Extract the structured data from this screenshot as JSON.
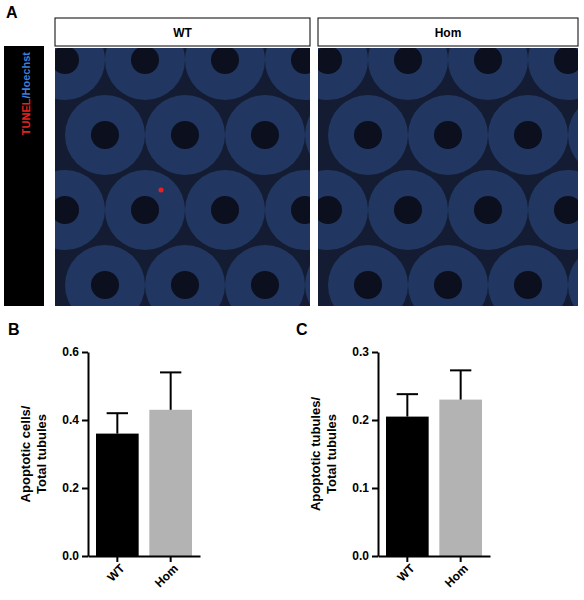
{
  "figure": {
    "panel_labels": [
      "A",
      "B",
      "C"
    ],
    "image_panel": {
      "stain_labels": [
        "TUNEL",
        "/Hoechst"
      ],
      "stain_colors": [
        "#e8231f",
        "#3d7fd6"
      ],
      "columns": [
        "WT",
        "Hom"
      ]
    }
  },
  "chart_data": [
    {
      "type": "bar",
      "categories": [
        "WT",
        "Hom"
      ],
      "values": [
        0.36,
        0.43
      ],
      "errors": [
        0.06,
        0.11
      ],
      "colors": [
        "#000000",
        "#b3b3b3"
      ],
      "y_label": [
        "Apoptotic cells/",
        "Total tubules"
      ],
      "ylim": [
        0,
        0.6
      ],
      "yticks": [
        {
          "value": 0,
          "label": "0.0"
        },
        0.2,
        0.4,
        0.6
      ]
    },
    {
      "type": "bar",
      "categories": [
        "WT",
        "Hom"
      ],
      "values": [
        0.205,
        0.23
      ],
      "errors": [
        0.033,
        0.043
      ],
      "colors": [
        "#000000",
        "#b3b3b3"
      ],
      "y_label": [
        "Apoptotic tubules/",
        "Total tubules"
      ],
      "ylim": [
        0,
        0.3
      ],
      "yticks": [
        {
          "value": 0,
          "label": "0.0"
        },
        0.1,
        0.2,
        0.3
      ]
    }
  ]
}
